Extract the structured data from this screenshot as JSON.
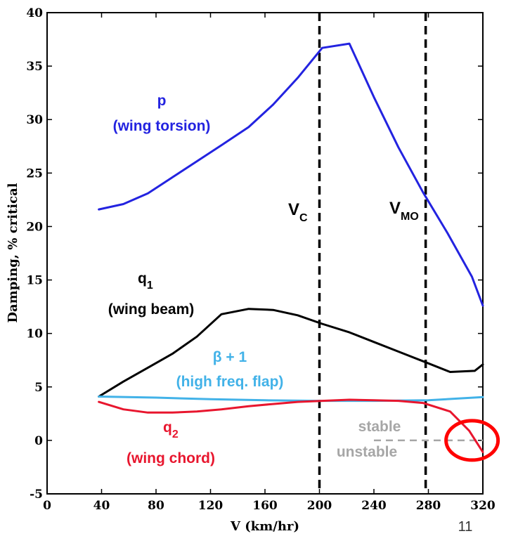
{
  "chart_data": {
    "type": "line",
    "xlabel": "V (km/hr)",
    "ylabel": "Damping, % critical",
    "xlim": [
      0,
      320
    ],
    "ylim": [
      -5,
      40
    ],
    "xticks": [
      "0",
      "40",
      "80",
      "120",
      "160",
      "200",
      "240",
      "280",
      "320"
    ],
    "yticks": [
      "-5",
      "0",
      "5",
      "10",
      "15",
      "20",
      "25",
      "30",
      "35",
      "40"
    ],
    "grid": false,
    "series": [
      {
        "key": "p",
        "color": "#2323e0",
        "x": [
          38,
          56,
          74,
          92,
          110,
          128,
          148,
          166,
          184,
          202,
          222,
          240,
          258,
          276,
          294,
          312,
          320
        ],
        "y": [
          21.6,
          22.1,
          23.1,
          24.6,
          26.1,
          27.6,
          29.3,
          31.4,
          33.9,
          36.7,
          37.1,
          32.1,
          27.4,
          23.2,
          19.4,
          15.3,
          12.6
        ]
      },
      {
        "key": "q1",
        "color": "#000000",
        "x": [
          38,
          56,
          74,
          92,
          110,
          128,
          148,
          166,
          184,
          202,
          222,
          240,
          258,
          276,
          296,
          314,
          320
        ],
        "y": [
          4.1,
          5.5,
          6.8,
          8.1,
          9.7,
          11.8,
          12.3,
          12.2,
          11.7,
          10.9,
          10.1,
          9.2,
          8.3,
          7.4,
          6.4,
          6.5,
          7.1
        ]
      },
      {
        "key": "beta1",
        "color": "#42b2e8",
        "x": [
          38,
          80,
          120,
          160,
          200,
          240,
          280,
          320
        ],
        "y": [
          4.1,
          4.0,
          3.85,
          3.75,
          3.7,
          3.7,
          3.75,
          4.05
        ]
      },
      {
        "key": "q2",
        "color": "#e8162e",
        "x": [
          38,
          56,
          74,
          92,
          110,
          128,
          148,
          166,
          184,
          202,
          222,
          240,
          258,
          276,
          296,
          310,
          320
        ],
        "y": [
          3.6,
          2.9,
          2.6,
          2.6,
          2.7,
          2.9,
          3.2,
          3.4,
          3.6,
          3.7,
          3.8,
          3.75,
          3.7,
          3.5,
          2.7,
          0.9,
          -1.1
        ]
      }
    ],
    "reference_lines": [
      {
        "x": 200,
        "style": "dashed",
        "color": "#000000"
      },
      {
        "x": 278,
        "style": "dashed",
        "color": "#000000"
      }
    ],
    "stability_line": {
      "y": 0,
      "x": [
        240,
        320
      ],
      "style": "dashed",
      "color": "#a6a6a6"
    },
    "highlight": {
      "x": 310,
      "y": 0,
      "color": "#ff0000"
    },
    "annotations": {
      "p_name": "p",
      "p_desc": "(wing torsion)",
      "q1_name": "q",
      "q1_sub": "1",
      "q1_desc": "(wing beam)",
      "beta_name": "β + 1",
      "beta_desc": "(high freq. flap)",
      "q2_name": "q",
      "q2_sub": "2",
      "q2_desc": "(wing chord)",
      "vc_main": "V",
      "vc_sub": "C",
      "vmo_main": "V",
      "vmo_sub": "MO",
      "stable": "stable",
      "unstable": "unstable"
    }
  },
  "slide_number": "11"
}
